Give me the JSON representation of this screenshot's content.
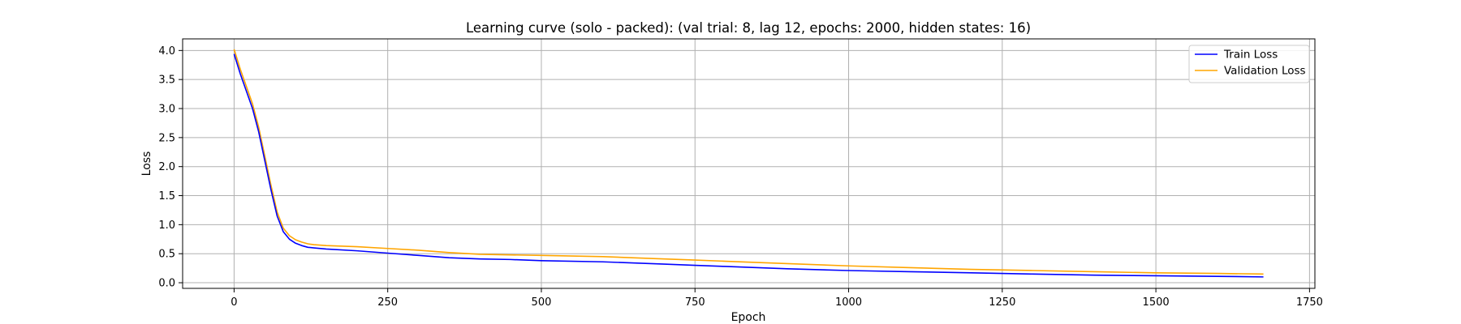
{
  "chart_data": {
    "type": "line",
    "title": "Learning curve (solo - packed): (val trial: 8, lag 12, epochs: 2000, hidden states: 16)",
    "xlabel": "Epoch",
    "ylabel": "Loss",
    "xlim": [
      -83.75,
      1758.75
    ],
    "ylim": [
      -0.097,
      4.2
    ],
    "xticks": [
      0,
      250,
      500,
      750,
      1000,
      1250,
      1500,
      1750
    ],
    "yticks": [
      0.0,
      0.5,
      1.0,
      1.5,
      2.0,
      2.5,
      3.0,
      3.5,
      4.0
    ],
    "grid": true,
    "legend_position": "top-right",
    "series": [
      {
        "name": "Train Loss",
        "color": "#0000ff",
        "x": [
          0,
          10,
          20,
          30,
          40,
          50,
          60,
          70,
          80,
          90,
          100,
          110,
          120,
          130,
          150,
          200,
          250,
          300,
          350,
          400,
          450,
          500,
          600,
          700,
          750,
          800,
          900,
          1000,
          1100,
          1200,
          1300,
          1400,
          1500,
          1600,
          1675
        ],
        "y": [
          3.94,
          3.6,
          3.3,
          3.0,
          2.6,
          2.1,
          1.6,
          1.15,
          0.88,
          0.75,
          0.68,
          0.64,
          0.61,
          0.6,
          0.58,
          0.55,
          0.51,
          0.47,
          0.43,
          0.41,
          0.4,
          0.38,
          0.36,
          0.32,
          0.3,
          0.28,
          0.24,
          0.21,
          0.19,
          0.17,
          0.15,
          0.13,
          0.12,
          0.11,
          0.1
        ]
      },
      {
        "name": "Validation Loss",
        "color": "#ffa500",
        "x": [
          0,
          10,
          20,
          30,
          40,
          50,
          60,
          70,
          80,
          90,
          100,
          110,
          120,
          130,
          150,
          200,
          250,
          300,
          350,
          400,
          450,
          500,
          600,
          700,
          750,
          800,
          900,
          1000,
          1100,
          1200,
          1300,
          1400,
          1500,
          1600,
          1675
        ],
        "y": [
          4.02,
          3.68,
          3.38,
          3.08,
          2.68,
          2.18,
          1.68,
          1.22,
          0.94,
          0.81,
          0.74,
          0.7,
          0.67,
          0.655,
          0.64,
          0.62,
          0.59,
          0.56,
          0.52,
          0.49,
          0.48,
          0.47,
          0.45,
          0.41,
          0.39,
          0.37,
          0.33,
          0.29,
          0.26,
          0.23,
          0.21,
          0.19,
          0.17,
          0.16,
          0.15
        ]
      }
    ]
  }
}
